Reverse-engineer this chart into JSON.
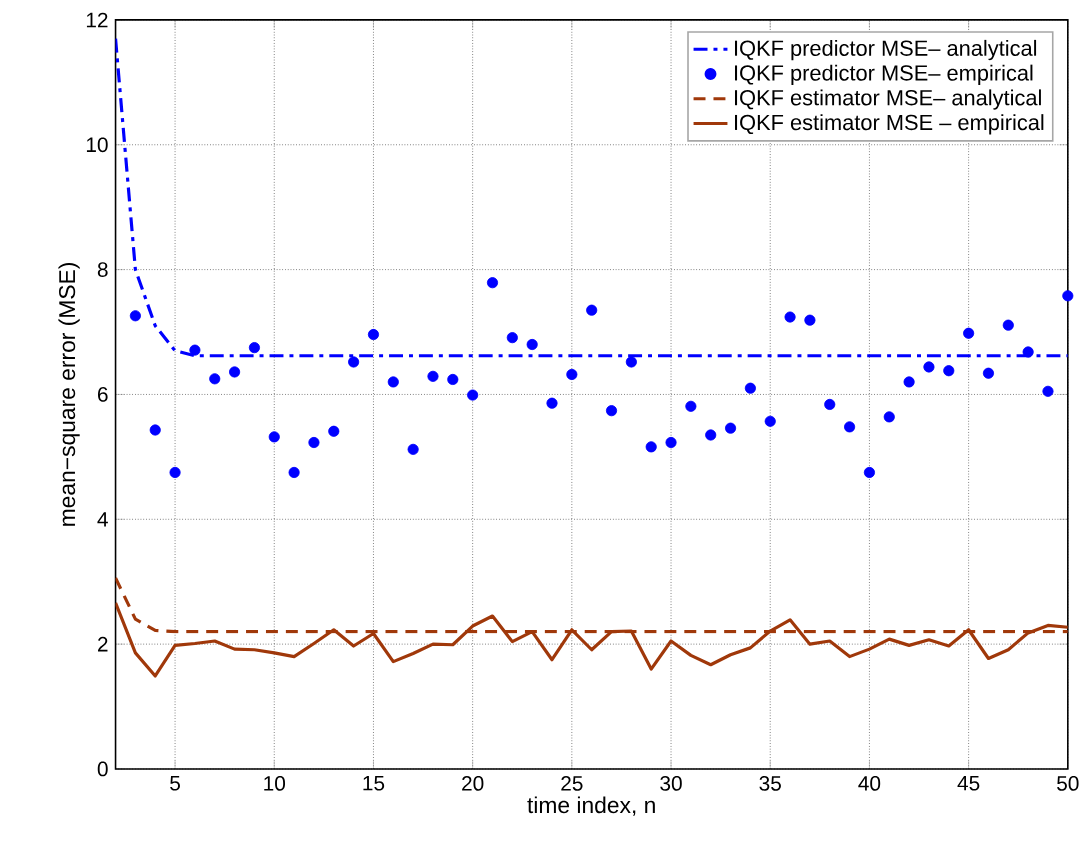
{
  "chart_data": {
    "type": "line",
    "xlabel": "time index, n",
    "ylabel": "mean−square error (MSE)",
    "xlim": [
      2,
      50
    ],
    "ylim": [
      0,
      12
    ],
    "xticks": [
      5,
      10,
      15,
      20,
      25,
      30,
      35,
      40,
      45,
      50
    ],
    "yticks": [
      0,
      2,
      4,
      6,
      8,
      10,
      12
    ],
    "grid": true,
    "legend": "top right",
    "series": [
      {
        "name": "IQKF predictor MSE– analytical",
        "type": "line",
        "color": "#0000ff",
        "line_style": "dashdot",
        "x": [
          2,
          3,
          4,
          5,
          6,
          50
        ],
        "values": [
          11.7,
          8.0,
          7.1,
          6.7,
          6.62,
          6.62
        ]
      },
      {
        "name": "IQKF predictor MSE– empirical",
        "type": "scatter",
        "color": "#0000ff",
        "marker": "circle",
        "x": [
          3,
          4,
          5,
          6,
          7,
          8,
          9,
          10,
          11,
          12,
          13,
          14,
          15,
          16,
          17,
          18,
          19,
          20,
          21,
          22,
          23,
          24,
          25,
          26,
          27,
          28,
          29,
          30,
          31,
          32,
          33,
          34,
          35,
          36,
          37,
          38,
          39,
          40,
          41,
          42,
          43,
          44,
          45,
          46,
          47,
          48,
          49,
          50
        ],
        "values": [
          7.26,
          5.43,
          4.75,
          6.71,
          6.25,
          6.36,
          6.75,
          5.32,
          4.75,
          5.23,
          5.41,
          6.52,
          6.96,
          6.2,
          5.12,
          6.29,
          6.24,
          5.99,
          7.79,
          6.91,
          6.8,
          5.86,
          6.32,
          7.35,
          5.74,
          6.52,
          5.16,
          5.23,
          5.81,
          5.35,
          5.46,
          6.1,
          5.57,
          7.24,
          7.19,
          5.84,
          5.48,
          4.75,
          5.64,
          6.2,
          6.44,
          6.38,
          6.98,
          6.34,
          7.11,
          6.68,
          6.05,
          7.58
        ]
      },
      {
        "name": "IQKF estimator MSE– analytical",
        "type": "line",
        "color": "#a0380a",
        "line_style": "dashed",
        "x": [
          2,
          3,
          4,
          5,
          50
        ],
        "values": [
          3.06,
          2.4,
          2.22,
          2.2,
          2.2
        ]
      },
      {
        "name": "IQKF estimator MSE – empirical",
        "type": "line",
        "color": "#a0380a",
        "line_style": "solid",
        "x": [
          2,
          3,
          4,
          5,
          6,
          7,
          8,
          9,
          10,
          11,
          12,
          13,
          14,
          15,
          16,
          17,
          18,
          19,
          20,
          21,
          22,
          23,
          24,
          25,
          26,
          27,
          28,
          29,
          30,
          31,
          32,
          33,
          34,
          35,
          36,
          37,
          38,
          39,
          40,
          41,
          42,
          43,
          44,
          45,
          46,
          47,
          48,
          49,
          50
        ],
        "values": [
          2.66,
          1.86,
          1.49,
          1.98,
          2.01,
          2.05,
          1.92,
          1.91,
          1.86,
          1.8,
          2.01,
          2.23,
          1.97,
          2.17,
          1.72,
          1.85,
          2.0,
          1.99,
          2.29,
          2.45,
          2.04,
          2.2,
          1.75,
          2.23,
          1.91,
          2.2,
          2.21,
          1.6,
          2.05,
          1.82,
          1.67,
          1.83,
          1.94,
          2.21,
          2.39,
          2.0,
          2.05,
          1.8,
          1.92,
          2.08,
          1.98,
          2.07,
          1.97,
          2.23,
          1.77,
          1.91,
          2.18,
          2.3,
          2.27
        ]
      }
    ]
  }
}
